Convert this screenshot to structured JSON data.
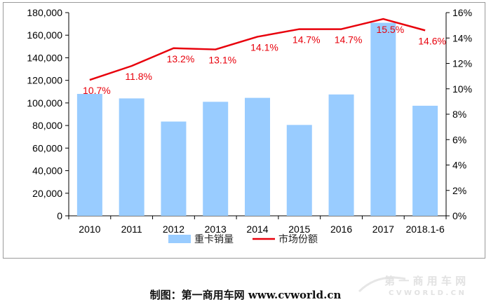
{
  "chart_data": {
    "type": "bar+line",
    "categories": [
      "2010",
      "2011",
      "2012",
      "2013",
      "2014",
      "2015",
      "2016",
      "2017",
      "2018.1-6"
    ],
    "series": [
      {
        "name": "重卡销量",
        "kind": "bar",
        "axis": "left",
        "color": "#99ccff",
        "values": [
          108000,
          104000,
          83500,
          101000,
          104500,
          80500,
          107500,
          171000,
          97500
        ]
      },
      {
        "name": "市场份额",
        "kind": "line",
        "axis": "right",
        "color": "#e8000b",
        "values": [
          10.7,
          11.8,
          13.2,
          13.1,
          14.1,
          14.7,
          14.7,
          15.5,
          14.6
        ],
        "labels": [
          "10.7%",
          "11.8%",
          "13.2%",
          "13.1%",
          "14.1%",
          "14.7%",
          "14.7%",
          "15.5%",
          "14.6%"
        ]
      }
    ],
    "y_left": {
      "min": 0,
      "max": 180000,
      "ticks": [
        "0",
        "20,000",
        "40,000",
        "60,000",
        "80,000",
        "100,000",
        "120,000",
        "140,000",
        "160,000",
        "180,000"
      ]
    },
    "y_right": {
      "min": 0,
      "max": 16,
      "ticks": [
        "0%",
        "2%",
        "4%",
        "6%",
        "8%",
        "10%",
        "12%",
        "14%",
        "16%"
      ]
    },
    "legend_position": "bottom-center"
  },
  "credit": "制图：第一商用车网 www.cvworld.cn",
  "watermark": {
    "text": "第 一 商 用 车 网",
    "subtext": "C V W O R L D . C N"
  }
}
